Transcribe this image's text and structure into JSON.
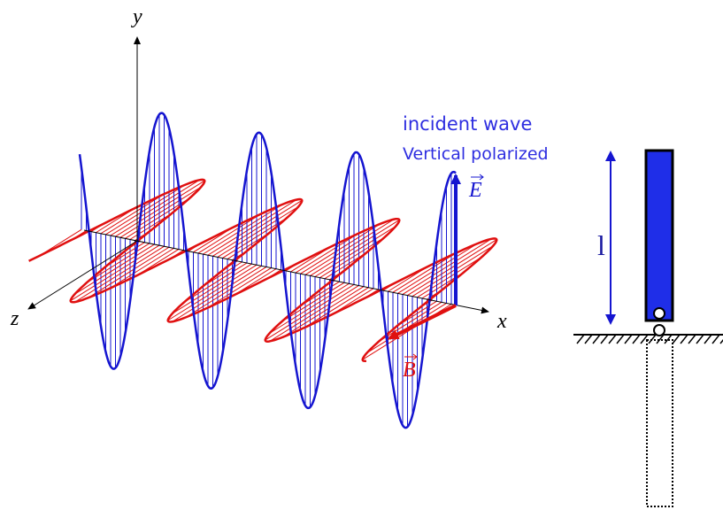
{
  "axes": {
    "y": "y",
    "z": "z",
    "x": "x"
  },
  "fields": {
    "E": "E",
    "B": "B"
  },
  "caption": [
    "incident wave",
    "Vertical polarized"
  ],
  "length_label": "l"
}
